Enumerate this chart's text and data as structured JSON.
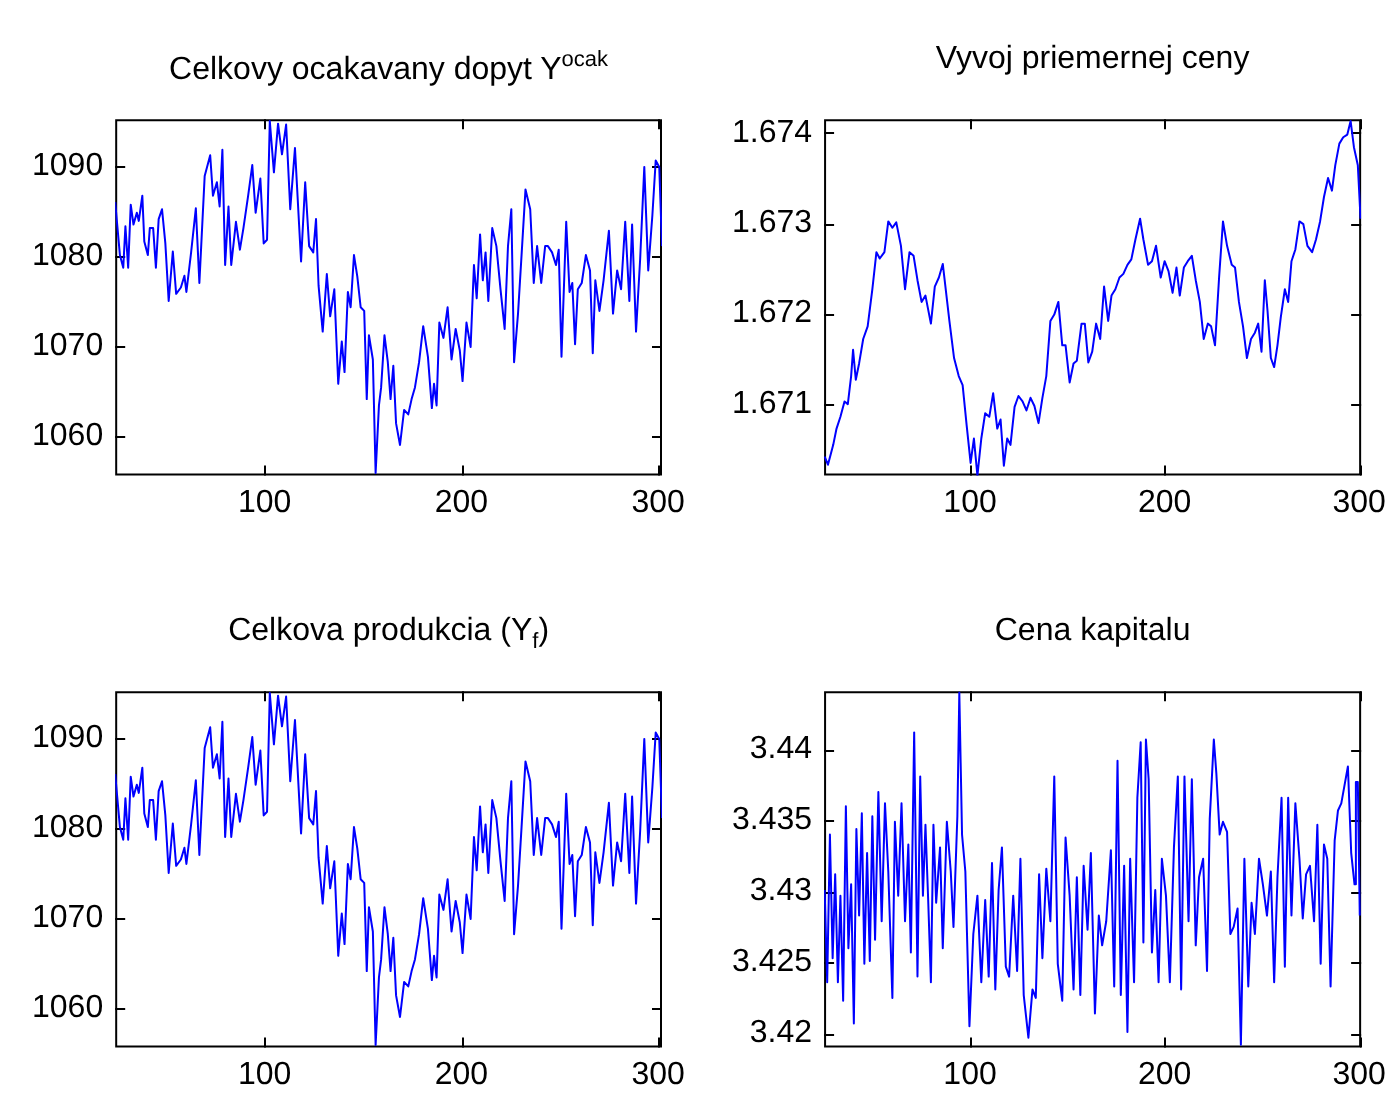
{
  "chart_data": [
    {
      "type": "line",
      "title": "Celkovy ocakavany dopyt Y$^{ocak}$",
      "x": [
        24,
        26.4,
        28.1,
        29.2,
        30.6,
        31.9,
        33.3,
        35,
        36,
        37.8,
        38.8,
        40.6,
        41.6,
        43.3,
        44.7,
        46.1,
        47.8,
        49.5,
        51.2,
        53.3,
        55,
        57.4,
        59.2,
        60.2,
        62.6,
        65,
        66.8,
        69.5,
        72.3,
        73.7,
        75.7,
        77.1,
        78.5,
        79.9,
        81.6,
        83,
        85.4,
        87.4,
        89.2,
        91.6,
        93.7,
        95.4,
        97.8,
        99.5,
        101.2,
        102.6,
        104.7,
        106.8,
        108.8,
        110.9,
        113,
        115.4,
        118.5,
        120.6,
        122.6,
        124.7,
        126.1,
        127.4,
        129.5,
        131.6,
        133.3,
        135.4,
        137.4,
        139.2,
        140.6,
        142.3,
        143.7,
        145.4,
        147.1,
        148.8,
        150.6,
        151.9,
        153,
        155,
        156.4,
        158.1,
        159.2,
        160.9,
        162.6,
        164,
        165.4,
        166.8,
        168.8,
        170.9,
        173,
        174.7,
        176.4,
        178.5,
        180.6,
        183,
        185,
        186.1,
        187.4,
        188.8,
        190.9,
        193,
        195,
        197.1,
        199.2,
        200.6,
        202.6,
        204.7,
        206.4,
        207.8,
        209.5,
        210.9,
        212.3,
        213.7,
        215.7,
        217.8,
        219.9,
        222,
        223.7,
        225.4,
        226.8,
        228.8,
        230.6,
        232.6,
        235,
        236.8,
        238.5,
        240.6,
        242.6,
        244,
        246.1,
        248.1,
        249.5,
        250.9,
        253.3,
        255,
        256.4,
        257.8,
        259.2,
        261.2,
        263.3,
        265.4,
        266.8,
        268.1,
        270.2,
        272.3,
        275,
        277.1,
        279.2,
        281.2,
        283.3,
        285.4,
        286.8,
        288.8,
        290.9,
        293,
        295,
        297.1,
        298.8,
        300.6,
        302
      ],
      "series": [
        {
          "color": "#0000ff",
          "values": [
            1086.0,
            1080.1,
            1078.7,
            1083.3,
            1078.7,
            1085.7,
            1083.5,
            1084.8,
            1083.9,
            1086.7,
            1081.6,
            1080.1,
            1083.1,
            1083.1,
            1078.7,
            1084.1,
            1085.2,
            1081.4,
            1075.0,
            1080.5,
            1075.8,
            1076.5,
            1077.8,
            1076.0,
            1080.4,
            1085.3,
            1077.0,
            1088.9,
            1091.2,
            1086.7,
            1088.2,
            1085.5,
            1091.8,
            1079.0,
            1085.5,
            1079.0,
            1083.8,
            1080.7,
            1083.1,
            1086.7,
            1090.1,
            1084.8,
            1088.6,
            1081.4,
            1081.8,
            1095.0,
            1089.3,
            1094.7,
            1091.3,
            1094.6,
            1085.2,
            1092.0,
            1079.4,
            1088.2,
            1081.1,
            1080.4,
            1084.1,
            1076.7,
            1071.6,
            1078.0,
            1073.3,
            1076.3,
            1065.8,
            1070.5,
            1067.1,
            1076.0,
            1074.3,
            1080.1,
            1077.7,
            1074.3,
            1073.9,
            1064.1,
            1071.2,
            1068.5,
            1055.9,
            1063.4,
            1065.4,
            1071.2,
            1068.2,
            1064.1,
            1067.8,
            1061.4,
            1059.0,
            1062.9,
            1062.4,
            1064.1,
            1065.4,
            1068.2,
            1072.2,
            1068.8,
            1063.1,
            1065.8,
            1063.4,
            1072.6,
            1070.9,
            1074.3,
            1068.5,
            1071.9,
            1069.5,
            1066.1,
            1072.6,
            1069.9,
            1079.0,
            1075.3,
            1082.4,
            1077.3,
            1080.4,
            1075.0,
            1083.1,
            1081.1,
            1076.3,
            1071.9,
            1081.1,
            1085.2,
            1068.2,
            1073.6,
            1080.1,
            1087.4,
            1085.2,
            1077.0,
            1081.1,
            1077.0,
            1081.1,
            1081.1,
            1080.4,
            1079.0,
            1080.7,
            1068.8,
            1083.8,
            1076.0,
            1077.0,
            1070.2,
            1076.3,
            1077.0,
            1080.1,
            1078.4,
            1069.2,
            1077.3,
            1073.9,
            1077.3,
            1082.8,
            1073.6,
            1078.4,
            1076.3,
            1083.8,
            1075.0,
            1083.5,
            1071.6,
            1079.7,
            1089.9,
            1078.4,
            1084.5,
            1090.6,
            1089.9,
            1081.1
          ]
        }
      ],
      "xlim": [
        24,
        302
      ],
      "xticks": [
        100,
        200,
        300
      ],
      "ylim": [
        1055.6,
        1095.2
      ],
      "yticks": [
        1060,
        1070,
        1080,
        1090
      ]
    },
    {
      "type": "line",
      "title": "Vyvoj priemernej ceny",
      "x": [
        25.3,
        27,
        29.7,
        31.4,
        33.4,
        35.5,
        37.2,
        38.9,
        39.9,
        41.3,
        43,
        45.1,
        47.4,
        49.8,
        51.9,
        53.6,
        56,
        58,
        60.1,
        62.1,
        64.5,
        66.6,
        68.9,
        71,
        73,
        75.1,
        77.1,
        79.9,
        81.9,
        84,
        86,
        89.4,
        91.8,
        94.2,
        96.2,
        98.3,
        100.3,
        102,
        103.8,
        105.8,
        107.8,
        109.9,
        111.9,
        114,
        115.7,
        117.4,
        119.1,
        120.8,
        122.9,
        124.9,
        127,
        129,
        131.1,
        133.1,
        135.2,
        137.2,
        139.2,
        141.3,
        143.3,
        145.4,
        147.4,
        149.1,
        151.2,
        153.2,
        154.9,
        157.3,
        159,
        160.8,
        162.8,
        164.8,
        166.9,
        168.9,
        171,
        172.7,
        174.7,
        176.8,
        178.8,
        180.9,
        182.9,
        185,
        187.4,
        189.1,
        191.5,
        193.5,
        195.6,
        198,
        200,
        202,
        204.1,
        206.1,
        207.8,
        209.9,
        211.9,
        214,
        216,
        218.1,
        220.1,
        222.2,
        223.9,
        225.9,
        228,
        230,
        232.1,
        234.5,
        236.2,
        238.2,
        240.3,
        242.3,
        244.4,
        246.4,
        248.1,
        249.8,
        251.5,
        252.9,
        254.6,
        256.3,
        258,
        259.7,
        261.8,
        263.5,
        265.2,
        267.2,
        269.3,
        271.3,
        273.4,
        275.8,
        277.8,
        279.9,
        281.9,
        284,
        286,
        287.7,
        289.8,
        291.8,
        293.9,
        295.6,
        297.3,
        299.3,
        300.7
      ],
      "series": [
        {
          "color": "#0000ff",
          "values": [
            1.67042,
            1.67033,
            1.67055,
            1.67073,
            1.67086,
            1.67103,
            1.671,
            1.67131,
            1.6716,
            1.67127,
            1.67145,
            1.67172,
            1.67186,
            1.67227,
            1.67268,
            1.67261,
            1.67268,
            1.67302,
            1.67295,
            1.67301,
            1.67275,
            1.67227,
            1.67268,
            1.67264,
            1.67237,
            1.67213,
            1.6722,
            1.67189,
            1.6723,
            1.6724,
            1.67255,
            1.67192,
            1.67151,
            1.67131,
            1.67121,
            1.67076,
            1.67035,
            1.67062,
            1.67021,
            1.67062,
            1.6709,
            1.67086,
            1.67112,
            1.67073,
            1.67083,
            1.67032,
            1.67062,
            1.67055,
            1.67097,
            1.67109,
            1.67103,
            1.67093,
            1.67107,
            1.67098,
            1.67079,
            1.67107,
            1.67131,
            1.67192,
            1.67199,
            1.67213,
            1.67165,
            1.67165,
            1.67124,
            1.67145,
            1.67148,
            1.67189,
            1.67189,
            1.67146,
            1.67158,
            1.67189,
            1.67172,
            1.6723,
            1.67192,
            1.6722,
            1.67227,
            1.6724,
            1.67244,
            1.67254,
            1.6726,
            1.67282,
            1.67305,
            1.67282,
            1.67254,
            1.67258,
            1.67275,
            1.6724,
            1.67258,
            1.67247,
            1.67223,
            1.67251,
            1.6722,
            1.67251,
            1.67258,
            1.67264,
            1.67237,
            1.67213,
            1.67172,
            1.67189,
            1.67186,
            1.67165,
            1.6724,
            1.67302,
            1.67275,
            1.67254,
            1.67251,
            1.67213,
            1.67186,
            1.67151,
            1.67172,
            1.67179,
            1.67189,
            1.67158,
            1.67237,
            1.67203,
            1.67151,
            1.67141,
            1.67165,
            1.67196,
            1.67227,
            1.67213,
            1.67258,
            1.67271,
            1.67302,
            1.67299,
            1.67275,
            1.67268,
            1.67282,
            1.67302,
            1.67329,
            1.6735,
            1.67336,
            1.67364,
            1.67388,
            1.67395,
            1.67398,
            1.67413,
            1.67384,
            1.67364,
            1.67305
          ]
        }
      ],
      "xlim": [
        25,
        301
      ],
      "xticks": [
        100,
        200,
        300
      ],
      "ylim": [
        1.67021,
        1.67415
      ],
      "yticks": [
        1.671,
        1.672,
        1.673,
        1.674
      ]
    },
    {
      "type": "line",
      "title": "Celkova produkcia (Y$_{f}$)",
      "x": [
        24,
        26.4,
        28.1,
        29.2,
        30.6,
        31.9,
        33.3,
        35,
        36,
        37.8,
        38.8,
        40.6,
        41.6,
        43.3,
        44.7,
        46.1,
        47.8,
        49.5,
        51.2,
        53.3,
        55,
        57.4,
        59.2,
        60.2,
        62.6,
        65,
        66.8,
        69.5,
        72.3,
        73.7,
        75.7,
        77.1,
        78.5,
        79.9,
        81.6,
        83,
        85.4,
        87.4,
        89.2,
        91.6,
        93.7,
        95.4,
        97.8,
        99.5,
        101.2,
        102.6,
        104.7,
        106.8,
        108.8,
        110.9,
        113,
        115.4,
        118.5,
        120.6,
        122.6,
        124.7,
        126.1,
        127.4,
        129.5,
        131.6,
        133.3,
        135.4,
        137.4,
        139.2,
        140.6,
        142.3,
        143.7,
        145.4,
        147.1,
        148.8,
        150.6,
        151.9,
        153,
        155,
        156.4,
        158.1,
        159.2,
        160.9,
        162.6,
        164,
        165.4,
        166.8,
        168.8,
        170.9,
        173,
        174.7,
        176.4,
        178.5,
        180.6,
        183,
        185,
        186.1,
        187.4,
        188.8,
        190.9,
        193,
        195,
        197.1,
        199.2,
        200.6,
        202.6,
        204.7,
        206.4,
        207.8,
        209.5,
        210.9,
        212.3,
        213.7,
        215.7,
        217.8,
        219.9,
        222,
        223.7,
        225.4,
        226.8,
        228.8,
        230.6,
        232.6,
        235,
        236.8,
        238.5,
        240.6,
        242.6,
        244,
        246.1,
        248.1,
        249.5,
        250.9,
        253.3,
        255,
        256.4,
        257.8,
        259.2,
        261.2,
        263.3,
        265.4,
        266.8,
        268.1,
        270.2,
        272.3,
        275,
        277.1,
        279.2,
        281.2,
        283.3,
        285.4,
        286.8,
        288.8,
        290.9,
        293,
        295,
        297.1,
        298.8,
        300.6,
        302
      ],
      "series": [
        {
          "color": "#0000ff",
          "values": [
            1086.0,
            1080.1,
            1078.7,
            1083.3,
            1078.7,
            1085.7,
            1083.5,
            1084.8,
            1083.9,
            1086.7,
            1081.6,
            1080.1,
            1083.1,
            1083.1,
            1078.7,
            1084.1,
            1085.2,
            1081.4,
            1075.0,
            1080.5,
            1075.8,
            1076.5,
            1077.8,
            1076.0,
            1080.4,
            1085.3,
            1077.0,
            1088.9,
            1091.2,
            1086.7,
            1088.2,
            1085.5,
            1091.8,
            1079.0,
            1085.5,
            1079.0,
            1083.8,
            1080.7,
            1083.1,
            1086.7,
            1090.1,
            1084.8,
            1088.6,
            1081.4,
            1081.8,
            1095.0,
            1089.3,
            1094.7,
            1091.3,
            1094.6,
            1085.2,
            1092.0,
            1079.4,
            1088.2,
            1081.1,
            1080.4,
            1084.1,
            1076.7,
            1071.6,
            1078.0,
            1073.3,
            1076.3,
            1065.8,
            1070.5,
            1067.1,
            1076.0,
            1074.3,
            1080.1,
            1077.7,
            1074.3,
            1073.9,
            1064.1,
            1071.2,
            1068.5,
            1055.9,
            1063.4,
            1065.4,
            1071.2,
            1068.2,
            1064.1,
            1067.8,
            1061.4,
            1059.0,
            1062.9,
            1062.4,
            1064.1,
            1065.4,
            1068.2,
            1072.2,
            1068.8,
            1063.1,
            1065.8,
            1063.4,
            1072.6,
            1070.9,
            1074.3,
            1068.5,
            1071.9,
            1069.5,
            1066.1,
            1072.6,
            1069.9,
            1079.0,
            1075.3,
            1082.4,
            1077.3,
            1080.4,
            1075.0,
            1083.1,
            1081.1,
            1076.3,
            1071.9,
            1081.1,
            1085.2,
            1068.2,
            1073.6,
            1080.1,
            1087.4,
            1085.2,
            1077.0,
            1081.1,
            1077.0,
            1081.1,
            1081.1,
            1080.4,
            1079.0,
            1080.7,
            1068.8,
            1083.8,
            1076.0,
            1077.0,
            1070.2,
            1076.3,
            1077.0,
            1080.1,
            1078.4,
            1069.2,
            1077.3,
            1073.9,
            1077.3,
            1082.8,
            1073.6,
            1078.4,
            1076.3,
            1083.8,
            1075.0,
            1083.5,
            1071.6,
            1079.7,
            1089.9,
            1078.4,
            1084.5,
            1090.6,
            1089.9,
            1081.1
          ]
        }
      ],
      "xlim": [
        24,
        302
      ],
      "xticks": [
        100,
        200,
        300
      ],
      "ylim": [
        1055.6,
        1095.2
      ],
      "yticks": [
        1060,
        1070,
        1080,
        1090
      ]
    },
    {
      "type": "line",
      "title": "Cena kapitalu",
      "x": [
        25.3,
        26.6,
        28,
        29.4,
        30.7,
        32.1,
        33.4,
        34.8,
        36.2,
        37.5,
        38.9,
        40.3,
        41.6,
        43,
        44.4,
        45.7,
        47.1,
        48.5,
        49.8,
        51.2,
        52.9,
        54.6,
        56.3,
        58,
        60.1,
        61.4,
        63.1,
        64.8,
        66.6,
        68.3,
        69.6,
        71.3,
        73,
        74.4,
        75.8,
        77.1,
        78.5,
        79.9,
        81.2,
        82.6,
        84.6,
        86,
        88.1,
        90.1,
        91.5,
        93.5,
        94.5,
        95.9,
        97.6,
        99.7,
        101.7,
        103.8,
        105.8,
        107.8,
        109.6,
        111.3,
        113,
        114.7,
        116.4,
        118.4,
        120.1,
        122.2,
        124.2,
        125.9,
        127.6,
        130,
        132.1,
        133.8,
        135.5,
        137.2,
        139.2,
        141.3,
        143.3,
        145.1,
        147.4,
        149.1,
        151.2,
        153.2,
        154.9,
        156.7,
        158.4,
        160.4,
        162.1,
        164.2,
        166.2,
        167.9,
        170,
        172.4,
        174.1,
        175.8,
        177.5,
        179.2,
        180.9,
        182.3,
        184.3,
        186,
        187.7,
        189.1,
        190.4,
        191.8,
        193.5,
        195.2,
        196.9,
        198.6,
        200.7,
        202.7,
        204.8,
        206.8,
        208.5,
        210.2,
        212.3,
        214,
        216,
        217.7,
        219.8,
        221.8,
        223.2,
        225.3,
        226.6,
        228.3,
        230,
        232.1,
        233.8,
        235.5,
        237.5,
        239.2,
        241,
        243,
        244.7,
        246.4,
        248.5,
        250.5,
        252.6,
        254.6,
        256.3,
        258,
        260.1,
        261.8,
        263.5,
        265.2,
        267.2,
        269.3,
        271,
        272.7,
        274.7,
        276.8,
        278.5,
        280.2,
        281.9,
        283.6,
        285.3,
        287.4,
        289.1,
        290.8,
        292.5,
        294.2,
        295.9,
        297.6,
        298.3,
        299.3,
        300.3
      ],
      "series": [
        {
          "color": "#0000ff",
          "values": [
            3.4301,
            3.4236,
            3.434,
            3.4253,
            3.4312,
            3.4236,
            3.4297,
            3.4223,
            3.436,
            3.426,
            3.4305,
            3.4207,
            3.4344,
            3.4283,
            3.4355,
            3.4249,
            3.4327,
            3.4251,
            3.4353,
            3.4266,
            3.437,
            3.4279,
            3.4362,
            3.4314,
            3.4225,
            3.4349,
            3.4297,
            3.4362,
            3.4279,
            3.4333,
            3.4257,
            3.4412,
            3.424,
            3.4381,
            3.4297,
            3.4347,
            3.4294,
            3.4236,
            3.4347,
            3.4292,
            3.4331,
            3.426,
            3.4349,
            3.4314,
            3.4275,
            3.4353,
            3.444,
            3.434,
            3.4314,
            3.4205,
            3.427,
            3.4297,
            3.4236,
            3.4294,
            3.424,
            3.432,
            3.4231,
            3.4301,
            3.4331,
            3.4247,
            3.424,
            3.4297,
            3.4244,
            3.4323,
            3.4227,
            3.4197,
            3.4231,
            3.4225,
            3.4312,
            3.4253,
            3.4316,
            3.4279,
            3.4381,
            3.4249,
            3.4223,
            3.4338,
            3.4297,
            3.4231,
            3.431,
            3.4227,
            3.4318,
            3.4273,
            3.4327,
            3.4214,
            3.4283,
            3.4262,
            3.4279,
            3.4329,
            3.4233,
            3.4392,
            3.4227,
            3.4318,
            3.4201,
            3.4323,
            3.4236,
            3.4366,
            3.4405,
            3.4264,
            3.4407,
            3.4379,
            3.4257,
            3.4301,
            3.4236,
            3.4323,
            3.4297,
            3.4236,
            3.4331,
            3.4381,
            3.4231,
            3.4381,
            3.4279,
            3.4379,
            3.4262,
            3.431,
            3.4323,
            3.4244,
            3.4351,
            3.4407,
            3.4383,
            3.434,
            3.4349,
            3.4342,
            3.427,
            3.4275,
            3.4288,
            3.4192,
            3.4323,
            3.4233,
            3.4292,
            3.427,
            3.4323,
            3.4305,
            3.4283,
            3.4314,
            3.4236,
            3.431,
            3.4366,
            3.4247,
            3.4366,
            3.4283,
            3.4362,
            3.4323,
            3.4281,
            3.4312,
            3.4318,
            3.4279,
            3.4347,
            3.4249,
            3.4333,
            3.4323,
            3.4233,
            3.4336,
            3.4357,
            3.4362,
            3.4375,
            3.4388,
            3.4327,
            3.4305,
            3.4377,
            3.4377,
            3.4283
          ]
        }
      ],
      "xlim": [
        25,
        301
      ],
      "xticks": [
        100,
        200,
        300
      ],
      "ylim": [
        3.419,
        3.4441
      ],
      "yticks": [
        3.42,
        3.425,
        3.43,
        3.435,
        3.44
      ]
    }
  ]
}
